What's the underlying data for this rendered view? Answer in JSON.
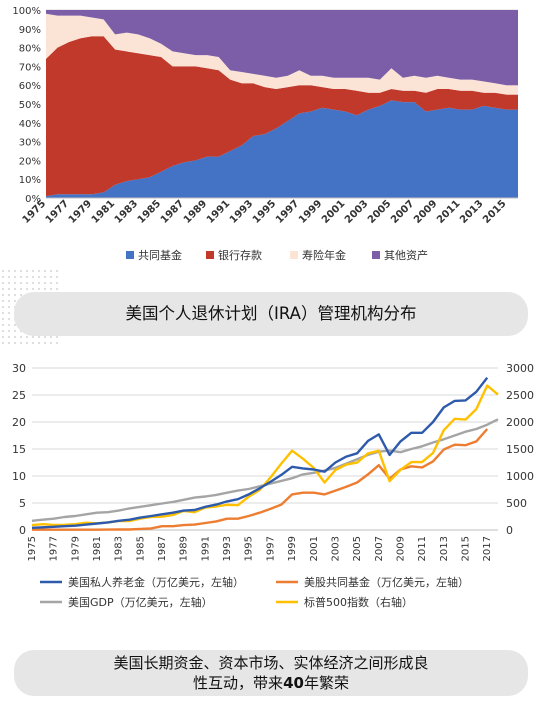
{
  "captions": {
    "top": "美国个人退休计划（IRA）管理机构分布",
    "bottom_line1": "美国长期资金、资本市场、实体经济之间形成良",
    "bottom_line2_pre": "性互动，带来",
    "bottom_line2_bold": "40",
    "bottom_line2_post": "年繁荣"
  },
  "chart_data": [
    {
      "type": "area",
      "stacked": true,
      "x": [
        1975,
        1976,
        1977,
        1978,
        1979,
        1980,
        1981,
        1982,
        1983,
        1984,
        1985,
        1986,
        1987,
        1988,
        1989,
        1990,
        1991,
        1992,
        1993,
        1994,
        1995,
        1996,
        1997,
        1998,
        1999,
        2000,
        2001,
        2002,
        2003,
        2004,
        2005,
        2006,
        2007,
        2008,
        2009,
        2010,
        2011,
        2012,
        2013,
        2014,
        2015,
        2016
      ],
      "x_tick_labels": [
        "1975",
        "1977",
        "1979",
        "1981",
        "1983",
        "1985",
        "1987",
        "1989",
        "1991",
        "1993",
        "1995",
        "1997",
        "1999",
        "2001",
        "2003",
        "2005",
        "2007",
        "2009",
        "2011",
        "2013",
        "2015"
      ],
      "y_tick_labels": [
        "0%",
        "10%",
        "20%",
        "30%",
        "40%",
        "50%",
        "60%",
        "70%",
        "80%",
        "90%",
        "100%"
      ],
      "ylim": [
        0,
        100
      ],
      "legend_position": "bottom",
      "series": [
        {
          "name": "共同基金",
          "color": "#4472c4",
          "values": [
            1,
            2,
            2,
            2,
            2,
            3,
            7,
            9,
            10,
            11,
            14,
            17,
            19,
            20,
            22,
            22,
            25,
            28,
            33,
            34,
            37,
            41,
            45,
            46,
            48,
            47,
            46,
            44,
            47,
            49,
            52,
            51,
            51,
            46,
            47,
            48,
            47,
            47,
            49,
            48,
            47,
            47
          ]
        },
        {
          "name": "银行存款",
          "color": "#c0392b",
          "values": [
            73,
            78,
            81,
            83,
            84,
            83,
            72,
            69,
            67,
            65,
            61,
            53,
            51,
            50,
            47,
            46,
            38,
            33,
            28,
            25,
            21,
            18,
            15,
            14,
            11,
            11,
            12,
            13,
            9,
            7,
            6,
            6,
            6,
            10,
            11,
            10,
            10,
            10,
            7,
            8,
            8,
            8
          ]
        },
        {
          "name": "寿险年金",
          "color": "#fbe3d6",
          "values": [
            24,
            17,
            14,
            12,
            10,
            9,
            8,
            10,
            10,
            9,
            7,
            8,
            7,
            6,
            7,
            7,
            5,
            6,
            5,
            6,
            6,
            6,
            8,
            5,
            6,
            6,
            6,
            7,
            8,
            7,
            11,
            7,
            8,
            8,
            7,
            6,
            6,
            6,
            6,
            5,
            5,
            5
          ]
        },
        {
          "name": "其他资产",
          "color": "#7b5ea7",
          "values": [
            2,
            3,
            3,
            3,
            4,
            5,
            13,
            12,
            13,
            15,
            18,
            22,
            23,
            24,
            24,
            25,
            32,
            33,
            34,
            35,
            36,
            35,
            32,
            35,
            35,
            36,
            36,
            36,
            36,
            37,
            31,
            36,
            35,
            36,
            35,
            36,
            37,
            37,
            38,
            39,
            40,
            40
          ]
        }
      ]
    },
    {
      "type": "line",
      "x": [
        1975,
        1976,
        1977,
        1978,
        1979,
        1980,
        1981,
        1982,
        1983,
        1984,
        1985,
        1986,
        1987,
        1988,
        1989,
        1990,
        1991,
        1992,
        1993,
        1994,
        1995,
        1996,
        1997,
        1998,
        1999,
        2000,
        2001,
        2002,
        2003,
        2004,
        2005,
        2006,
        2007,
        2008,
        2009,
        2010,
        2011,
        2012,
        2013,
        2014,
        2015,
        2016,
        2017,
        2018
      ],
      "x_tick_labels": [
        "1975",
        "1977",
        "1979",
        "1981",
        "1983",
        "1985",
        "1987",
        "1989",
        "1991",
        "1993",
        "1995",
        "1997",
        "1999",
        "2001",
        "2003",
        "2005",
        "2007",
        "2009",
        "2011",
        "2013",
        "2015",
        "2017"
      ],
      "y_left_tick_labels": [
        "0",
        "5",
        "10",
        "15",
        "20",
        "25",
        "30"
      ],
      "y_right_tick_labels": [
        "0",
        "500",
        "1000",
        "1500",
        "2000",
        "2500",
        "3000"
      ],
      "ylim_left": [
        0,
        30
      ],
      "ylim_right": [
        0,
        3000
      ],
      "legend_position": "bottom",
      "series": [
        {
          "name": "美国私人养老金（万亿美元，左轴）",
          "axis": "left",
          "color": "#2e5aac",
          "values": [
            0.4,
            0.5,
            0.6,
            0.7,
            0.8,
            1.0,
            1.2,
            1.4,
            1.7,
            1.9,
            2.3,
            2.6,
            2.9,
            3.2,
            3.6,
            3.7,
            4.3,
            4.7,
            5.3,
            5.7,
            6.6,
            7.7,
            8.9,
            10.2,
            11.7,
            11.4,
            11.2,
            10.8,
            12.5,
            13.6,
            14.2,
            16.5,
            17.7,
            13.9,
            16.4,
            18.0,
            18.0,
            20.0,
            22.7,
            23.9,
            24.0,
            25.6,
            28.2,
            null
          ]
        },
        {
          "name": "美股共同基金（万亿美元，左轴）",
          "axis": "left",
          "color": "#ed7d31",
          "values": [
            0.05,
            0.05,
            0.05,
            0.05,
            0.05,
            0.06,
            0.05,
            0.07,
            0.1,
            0.1,
            0.2,
            0.3,
            0.7,
            0.7,
            0.9,
            1.0,
            1.3,
            1.6,
            2.1,
            2.1,
            2.6,
            3.2,
            3.9,
            4.7,
            6.6,
            6.9,
            6.9,
            6.6,
            7.3,
            8.0,
            8.8,
            10.3,
            12.0,
            9.5,
            11.2,
            11.8,
            11.6,
            12.7,
            14.9,
            15.8,
            15.7,
            16.4,
            18.7,
            null
          ]
        },
        {
          "name": "美国GDP（万亿美元，左轴）",
          "axis": "left",
          "color": "#a5a5a5",
          "values": [
            1.7,
            1.9,
            2.1,
            2.4,
            2.6,
            2.9,
            3.2,
            3.3,
            3.6,
            4.0,
            4.3,
            4.6,
            4.9,
            5.2,
            5.6,
            6.0,
            6.2,
            6.5,
            6.9,
            7.3,
            7.6,
            8.1,
            8.6,
            9.1,
            9.6,
            10.3,
            10.6,
            11.0,
            11.5,
            12.3,
            13.1,
            13.9,
            14.5,
            14.7,
            14.4,
            15.0,
            15.5,
            16.2,
            16.8,
            17.5,
            18.2,
            18.7,
            19.5,
            20.5
          ]
        },
        {
          "name": "标普500指数（右轴）",
          "axis": "right",
          "color": "#ffc000",
          "values": [
            90,
            107,
            95,
            96,
            108,
            136,
            122,
            141,
            165,
            167,
            211,
            242,
            247,
            277,
            353,
            330,
            417,
            436,
            466,
            459,
            616,
            741,
            970,
            1229,
            1469,
            1320,
            1148,
            880,
            1112,
            1212,
            1248,
            1418,
            1468,
            903,
            1115,
            1258,
            1258,
            1426,
            1848,
            2059,
            2044,
            2239,
            2674,
            2507
          ]
        }
      ]
    }
  ]
}
